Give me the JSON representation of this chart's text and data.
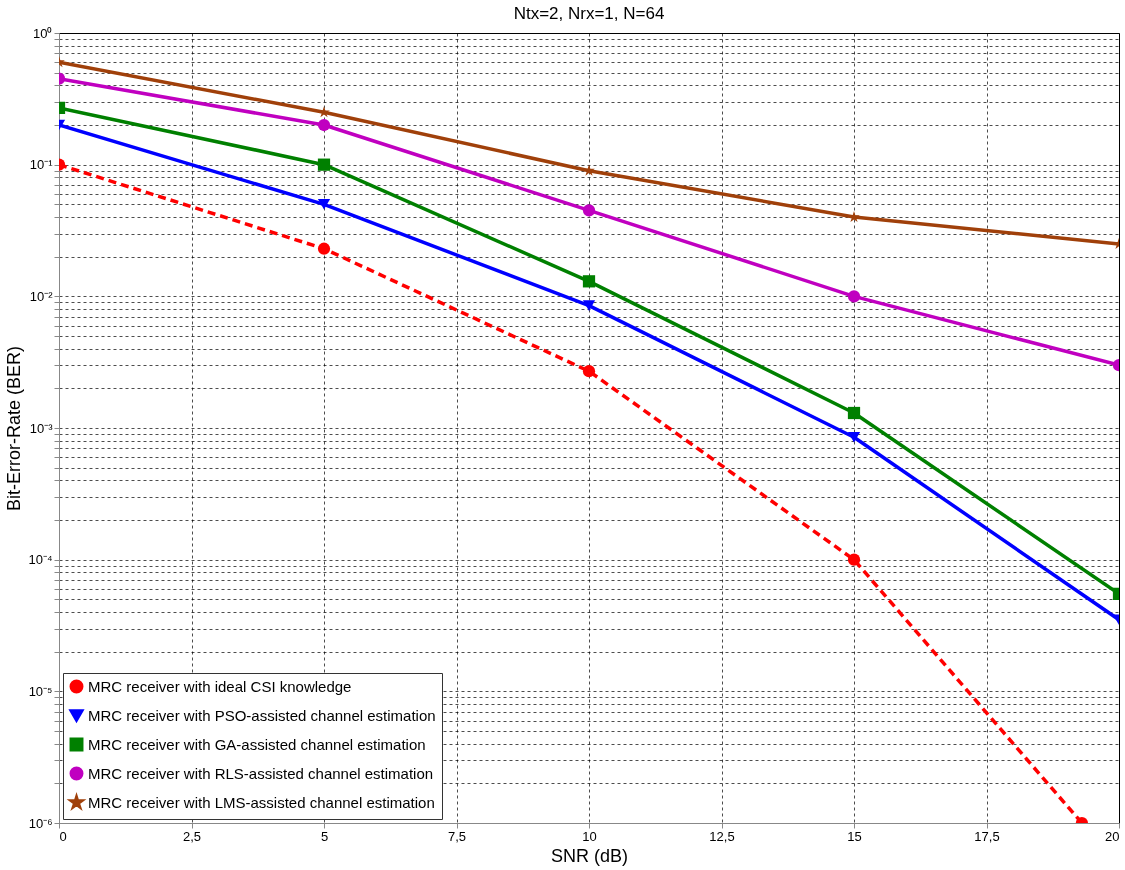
{
  "chart_data": {
    "type": "line",
    "title": "Ntx=2, Nrx=1, N=64",
    "xlabel": "SNR (dB)",
    "ylabel": "Bit-Error-Rate (BER)",
    "x": [
      0,
      5,
      10,
      15,
      20
    ],
    "series": [
      {
        "name": "MRC receiver with ideal CSI knowledge",
        "color": "#ff0000",
        "x": [
          0,
          5,
          10,
          15,
          19.3
        ],
        "values": [
          0.1,
          0.023,
          0.0027,
          0.0001,
          1e-06
        ],
        "marker": "circle",
        "line_style": "dashed"
      },
      {
        "name": "MRC receiver with PSO-assisted channel estimation",
        "color": "#0000ff",
        "values": [
          0.2,
          0.05,
          0.0085,
          0.00085,
          3.5e-05
        ],
        "marker": "triangle",
        "line_style": "solid"
      },
      {
        "name": "MRC receiver with GA-assisted channel estimation",
        "color": "#008000",
        "values": [
          0.27,
          0.1,
          0.013,
          0.0013,
          5.5e-05
        ],
        "marker": "square",
        "line_style": "solid"
      },
      {
        "name": "MRC receiver with RLS-assisted channel estimation",
        "color": "#c000c0",
        "values": [
          0.45,
          0.2,
          0.045,
          0.01,
          0.003
        ],
        "marker": "circle",
        "line_style": "solid"
      },
      {
        "name": "MRC receiver with LMS-assisted channel estimation",
        "color": "#a0400a",
        "values": [
          0.6,
          0.25,
          0.09,
          0.04,
          0.025
        ],
        "marker": "star",
        "line_style": "solid"
      }
    ],
    "log": "y",
    "grid": true,
    "legend": "bottom left",
    "xlim": [
      0,
      20
    ],
    "xticks": [
      0,
      {
        "value": 2.5,
        "label": "2,5"
      },
      5,
      {
        "value": 7.5,
        "label": "7,5"
      },
      10,
      {
        "value": 12.5,
        "label": "12,5"
      },
      15,
      {
        "value": 17.5,
        "label": "17,5"
      },
      20
    ],
    "ylim": [
      1e-06,
      1
    ],
    "yticks": [
      {
        "value": 1e-06,
        "label": "10⁻⁶"
      },
      {
        "value": 2e-06,
        "label": null
      },
      {
        "value": 3e-06,
        "label": null
      },
      {
        "value": 4e-06,
        "label": null
      },
      {
        "value": 5e-06,
        "label": null
      },
      {
        "value": 6e-06,
        "label": null
      },
      {
        "value": 7e-06,
        "label": null
      },
      {
        "value": 8e-06,
        "label": null
      },
      {
        "value": 9e-06,
        "label": null
      },
      {
        "value": 1e-05,
        "label": "10⁻⁵"
      },
      {
        "value": 2e-05,
        "label": null
      },
      {
        "value": 3e-05,
        "label": null
      },
      {
        "value": 4e-05,
        "label": null
      },
      {
        "value": 5e-05,
        "label": null
      },
      {
        "value": 6e-05,
        "label": null
      },
      {
        "value": 7e-05,
        "label": null
      },
      {
        "value": 8e-05,
        "label": null
      },
      {
        "value": 9e-05,
        "label": null
      },
      {
        "value": 0.0001,
        "label": "10⁻⁴"
      },
      {
        "value": 0.0002,
        "label": null
      },
      {
        "value": 0.0003,
        "label": null
      },
      {
        "value": 0.0004,
        "label": null
      },
      {
        "value": 0.0005,
        "label": null
      },
      {
        "value": 0.0006,
        "label": null
      },
      {
        "value": 0.0007,
        "label": null
      },
      {
        "value": 0.0008,
        "label": null
      },
      {
        "value": 0.0009,
        "label": null
      },
      {
        "value": 0.001,
        "label": "10⁻³"
      },
      {
        "value": 0.002,
        "label": null
      },
      {
        "value": 0.003,
        "label": null
      },
      {
        "value": 0.004,
        "label": null
      },
      {
        "value": 0.005,
        "label": null
      },
      {
        "value": 0.006,
        "label": null
      },
      {
        "value": 0.007,
        "label": null
      },
      {
        "value": 0.008,
        "label": null
      },
      {
        "value": 0.009,
        "label": null
      },
      {
        "value": 0.01,
        "label": "10⁻²"
      },
      {
        "value": 0.02,
        "label": null
      },
      {
        "value": 0.03,
        "label": null
      },
      {
        "value": 0.04,
        "label": null
      },
      {
        "value": 0.05,
        "label": null
      },
      {
        "value": 0.06,
        "label": null
      },
      {
        "value": 0.07,
        "label": null
      },
      {
        "value": 0.08,
        "label": null
      },
      {
        "value": 0.09,
        "label": null
      },
      {
        "value": 0.1,
        "label": "10⁻¹"
      },
      {
        "value": 0.2,
        "label": null
      },
      {
        "value": 0.3,
        "label": null
      },
      {
        "value": 0.4,
        "label": null
      },
      {
        "value": 0.5,
        "label": null
      },
      {
        "value": 0.6,
        "label": null
      },
      {
        "value": 0.7,
        "label": null
      },
      {
        "value": 0.8,
        "label": null
      },
      {
        "value": 0.9,
        "label": null
      },
      {
        "value": 1,
        "label": "10⁰"
      }
    ]
  }
}
